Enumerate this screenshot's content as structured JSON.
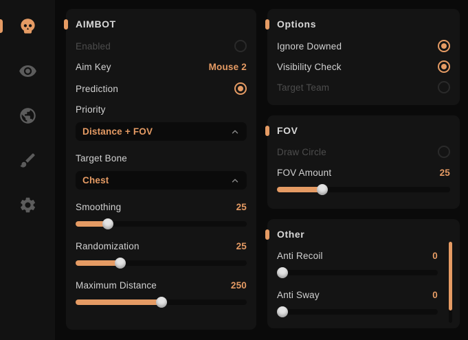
{
  "accent_color": "#e59b64",
  "sidebar": {
    "items": [
      {
        "icon": "skull-icon",
        "active": true
      },
      {
        "icon": "eye-icon",
        "active": false
      },
      {
        "icon": "globe-icon",
        "active": false
      },
      {
        "icon": "brush-icon",
        "active": false
      },
      {
        "icon": "gear-icon",
        "active": false
      }
    ]
  },
  "panels": {
    "aimbot": {
      "title": "AIMBOT",
      "enabled": {
        "label": "Enabled",
        "state": "off"
      },
      "aim_key": {
        "label": "Aim Key",
        "value": "Mouse 2"
      },
      "prediction": {
        "label": "Prediction",
        "state": "on"
      },
      "priority": {
        "label": "Priority",
        "selected": "Distance + FOV",
        "expanded_icon": "chevron-up-icon"
      },
      "target_bone": {
        "label": "Target Bone",
        "selected": "Chest",
        "expanded_icon": "chevron-up-icon"
      },
      "smoothing": {
        "label": "Smoothing",
        "value": "25",
        "percent": 19
      },
      "randomization": {
        "label": "Randomization",
        "value": "25",
        "percent": 26
      },
      "maximum_distance": {
        "label": "Maximum Distance",
        "value": "250",
        "percent": 50
      }
    },
    "options": {
      "title": "Options",
      "ignore_downed": {
        "label": "Ignore Downed",
        "state": "on"
      },
      "visibility_check": {
        "label": "Visibility Check",
        "state": "on"
      },
      "target_team": {
        "label": "Target Team",
        "state": "off"
      }
    },
    "fov": {
      "title": "FOV",
      "draw_circle": {
        "label": "Draw Circle",
        "state": "off"
      },
      "fov_amount": {
        "label": "FOV Amount",
        "value": "25",
        "percent": 26
      }
    },
    "other": {
      "title": "Other",
      "anti_recoil": {
        "label": "Anti Recoil",
        "value": "0",
        "percent": 0
      },
      "anti_sway": {
        "label": "Anti Sway",
        "value": "0",
        "percent": 0
      }
    }
  }
}
